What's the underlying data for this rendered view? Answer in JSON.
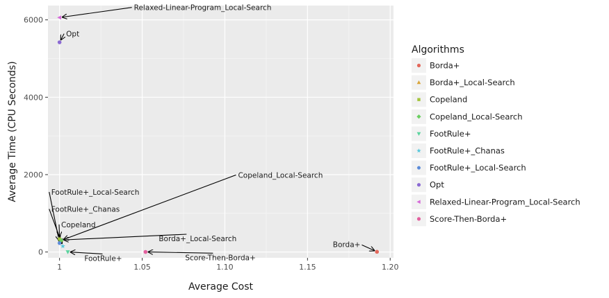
{
  "chart_data": {
    "type": "scatter",
    "xlabel": "Average Cost",
    "ylabel": "Average Time (CPU Seconds)",
    "xlim": [
      0.993,
      1.202
    ],
    "ylim": [
      -150,
      6370
    ],
    "x_ticks": [
      1.0,
      1.05,
      1.1,
      1.15,
      1.2
    ],
    "x_tick_labels": [
      "1",
      "1.05",
      "1.10",
      "1.15",
      "1.20"
    ],
    "y_ticks": [
      0,
      2000,
      4000,
      6000
    ],
    "y_tick_labels": [
      "0",
      "2000",
      "4000",
      "6000"
    ],
    "grid": true,
    "legend": {
      "title": "Algorithms",
      "position": "right"
    },
    "series": [
      {
        "name": "Borda+",
        "color": "#E3685C",
        "shape": "circle",
        "x": 1.192,
        "y": 5
      },
      {
        "name": "Borda+_Local-Search",
        "color": "#D9A53A",
        "shape": "triangle-up",
        "x": 1.001,
        "y": 310
      },
      {
        "name": "Copeland",
        "color": "#A3C43C",
        "shape": "square",
        "x": 1.0,
        "y": 335
      },
      {
        "name": "Copeland_Local-Search",
        "color": "#6BCF61",
        "shape": "diamond",
        "x": 1.001,
        "y": 300
      },
      {
        "name": "FootRule+",
        "color": "#5BD49E",
        "shape": "triangle-down",
        "x": 1.005,
        "y": 3
      },
      {
        "name": "FootRule+_Chanas",
        "color": "#58C8DB",
        "shape": "star",
        "x": 1.002,
        "y": 150
      },
      {
        "name": "FootRule+_Local-Search",
        "color": "#5B8BD9",
        "shape": "hexagon",
        "x": 1.0,
        "y": 230
      },
      {
        "name": "Opt",
        "color": "#8B6AD3",
        "shape": "circle",
        "x": 1.0,
        "y": 5420
      },
      {
        "name": "Relaxed-Linear-Program_Local-Search",
        "color": "#D66AD9",
        "shape": "triangle-left",
        "x": 1.0,
        "y": 6060
      },
      {
        "name": "Score-Then-Borda+",
        "color": "#E3609E",
        "shape": "circle",
        "x": 1.052,
        "y": 2
      }
    ],
    "annotations": [
      {
        "text": "Relaxed-Linear-Program_Local-Search",
        "target": 8,
        "text_x": 1.045,
        "text_y": 6250,
        "anchor": "start"
      },
      {
        "text": "Opt",
        "target": 7,
        "text_x": 1.004,
        "text_y": 5570,
        "anchor": "start"
      },
      {
        "text": "Copeland_Local-Search",
        "target": 3,
        "text_x": 1.108,
        "text_y": 1920,
        "anchor": "start"
      },
      {
        "text": "FootRule+_Local-Search",
        "target": 6,
        "text_x": 0.995,
        "text_y": 1480,
        "anchor": "start"
      },
      {
        "text": "FootRule+_Chanas",
        "target": 5,
        "text_x": 0.995,
        "text_y": 1040,
        "anchor": "start"
      },
      {
        "text": "Copeland",
        "target": 2,
        "text_x": 1.001,
        "text_y": 640,
        "anchor": "start"
      },
      {
        "text": "Borda+_Local-Search",
        "target": 1,
        "text_x": 1.06,
        "text_y": 280,
        "anchor": "start"
      },
      {
        "text": "FootRule+",
        "target": 4,
        "text_x": 1.015,
        "text_y": -230,
        "anchor": "start"
      },
      {
        "text": "Score-Then-Borda+",
        "target": 9,
        "text_x": 1.076,
        "text_y": -210,
        "anchor": "start"
      },
      {
        "text": "Borda+",
        "target": 0,
        "text_x": 1.182,
        "text_y": 130,
        "anchor": "end"
      }
    ]
  }
}
